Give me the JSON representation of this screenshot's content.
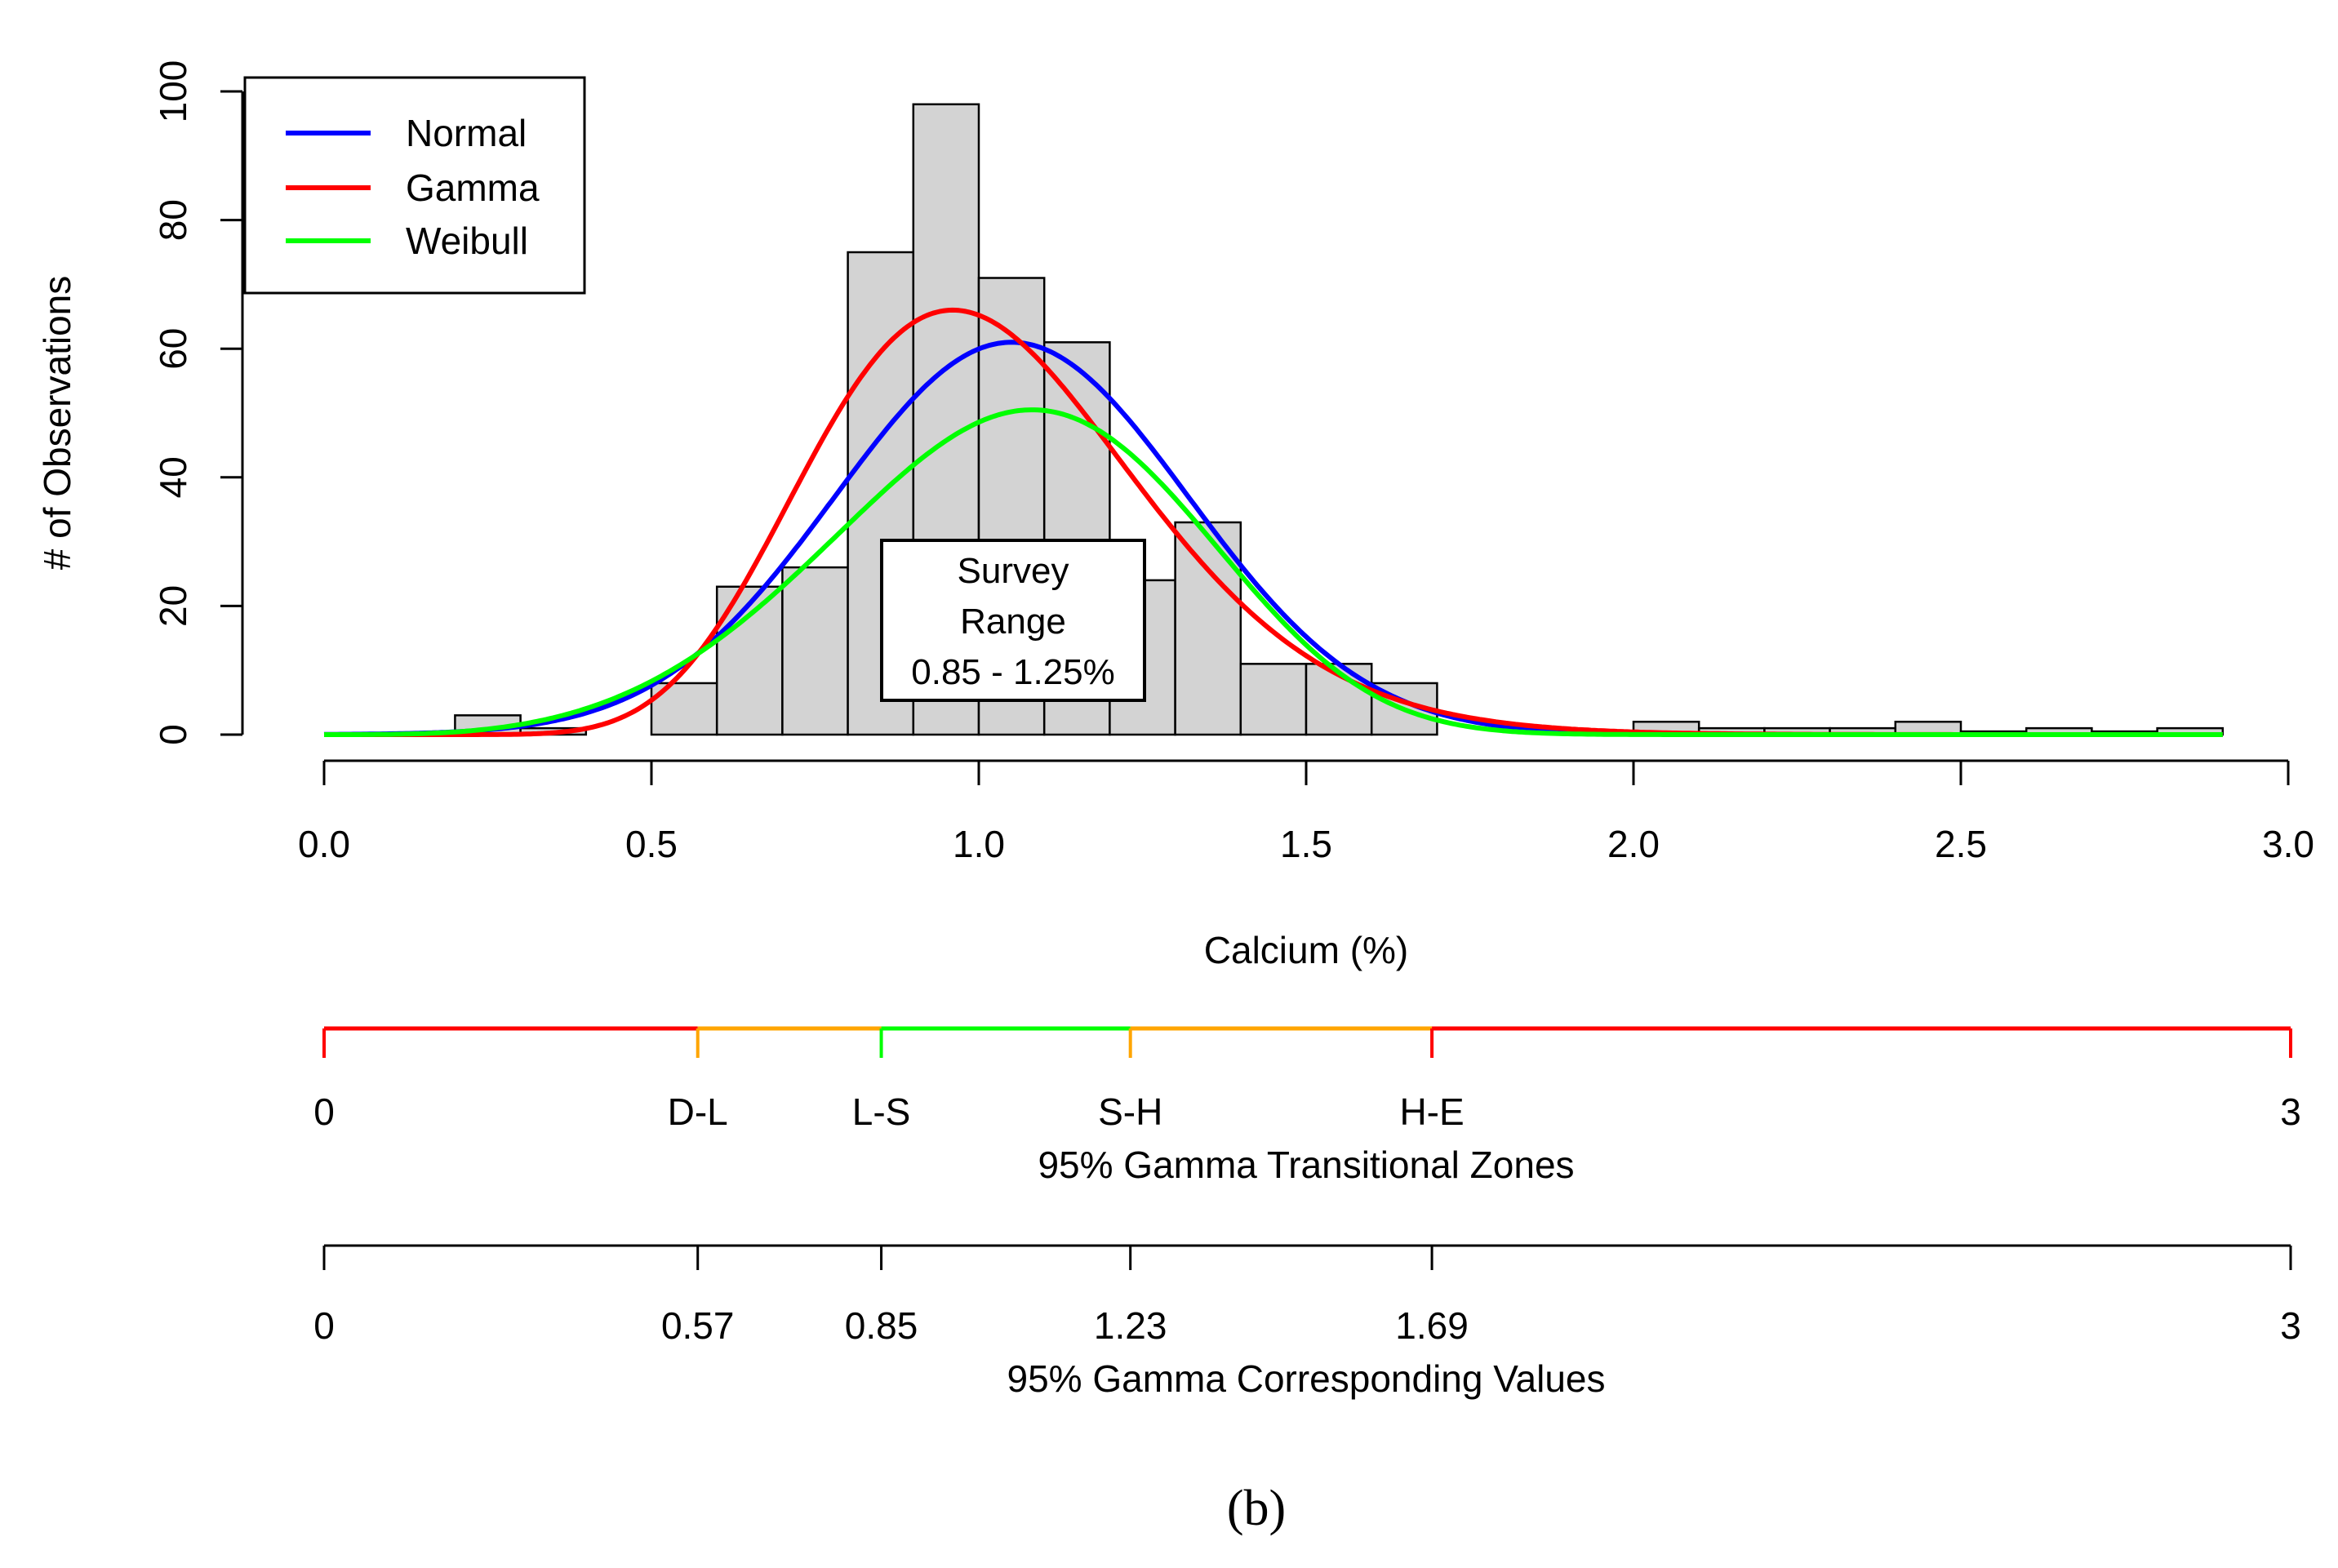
{
  "chart_data": {
    "type": "bar",
    "subtype": "histogram-with-density-fits",
    "xlabel": "Calcium (%)",
    "ylabel": "# of Observations",
    "xlim": [
      0,
      3
    ],
    "ylim": [
      0,
      100
    ],
    "x_ticks": [
      "0.0",
      "0.5",
      "1.0",
      "1.5",
      "2.0",
      "2.5",
      "3.0"
    ],
    "y_ticks": [
      "0",
      "20",
      "40",
      "60",
      "80",
      "100"
    ],
    "bin_width": 0.1,
    "bins": [
      {
        "start": 0.2,
        "count": 3
      },
      {
        "start": 0.3,
        "count": 1
      },
      {
        "start": 0.5,
        "count": 8
      },
      {
        "start": 0.6,
        "count": 23
      },
      {
        "start": 0.7,
        "count": 26
      },
      {
        "start": 0.8,
        "count": 75
      },
      {
        "start": 0.9,
        "count": 98
      },
      {
        "start": 1.0,
        "count": 71
      },
      {
        "start": 1.1,
        "count": 61
      },
      {
        "start": 1.2,
        "count": 24
      },
      {
        "start": 1.3,
        "count": 33
      },
      {
        "start": 1.4,
        "count": 11
      },
      {
        "start": 1.5,
        "count": 11
      },
      {
        "start": 1.6,
        "count": 8
      },
      {
        "start": 2.0,
        "count": 2
      },
      {
        "start": 2.1,
        "count": 1
      },
      {
        "start": 2.2,
        "count": 1
      },
      {
        "start": 2.3,
        "count": 1
      },
      {
        "start": 2.4,
        "count": 2
      },
      {
        "start": 2.5,
        "count": 0.5
      },
      {
        "start": 2.6,
        "count": 1
      },
      {
        "start": 2.7,
        "count": 0.5
      },
      {
        "start": 2.8,
        "count": 1
      }
    ],
    "series": [
      {
        "name": "Normal",
        "color": "#0000ff",
        "dist": "normal",
        "mean": 1.05,
        "sd": 0.27,
        "peak": 61
      },
      {
        "name": "Gamma",
        "color": "#ff0000",
        "dist": "gamma",
        "shape": 15.5,
        "rate": 15.1,
        "peak": 66
      },
      {
        "name": "Weibull",
        "color": "#00ff00",
        "dist": "weibull",
        "shape": 4.3,
        "scale": 1.15,
        "peak": 50.5
      }
    ],
    "legend": {
      "position": "top-left",
      "entries": [
        "Normal",
        "Gamma",
        "Weibull"
      ]
    },
    "annotation": {
      "lines": [
        "Survey",
        "Range",
        "0.85 - 1.25%"
      ],
      "x": 1.05,
      "y": 22
    }
  },
  "zones": {
    "title": "95% Gamma Transitional Zones",
    "segments": [
      {
        "from": 0,
        "to": 0.57,
        "color": "#ff0000"
      },
      {
        "from": 0.57,
        "to": 0.85,
        "color": "#ffa500"
      },
      {
        "from": 0.85,
        "to": 1.23,
        "color": "#00ff00"
      },
      {
        "from": 1.23,
        "to": 1.69,
        "color": "#ffa500"
      },
      {
        "from": 1.69,
        "to": 3,
        "color": "#ff0000"
      }
    ],
    "ticks": [
      {
        "value": 0,
        "label": "0",
        "color": "#ff0000"
      },
      {
        "value": 0.57,
        "label": "D-L",
        "color": "#ffa500"
      },
      {
        "value": 0.85,
        "label": "L-S",
        "color": "#00ff00"
      },
      {
        "value": 1.23,
        "label": "S-H",
        "color": "#ffa500"
      },
      {
        "value": 1.69,
        "label": "H-E",
        "color": "#ff0000"
      },
      {
        "value": 3,
        "label": "3",
        "color": "#ff0000"
      }
    ]
  },
  "values_axis": {
    "title": "95% Gamma Corresponding Values",
    "ticks": [
      {
        "value": 0,
        "label": "0"
      },
      {
        "value": 0.57,
        "label": "0.57"
      },
      {
        "value": 0.85,
        "label": "0.85"
      },
      {
        "value": 1.23,
        "label": "1.23"
      },
      {
        "value": 1.69,
        "label": "1.69"
      },
      {
        "value": 3,
        "label": "3"
      }
    ]
  },
  "panel_label": "(b)"
}
